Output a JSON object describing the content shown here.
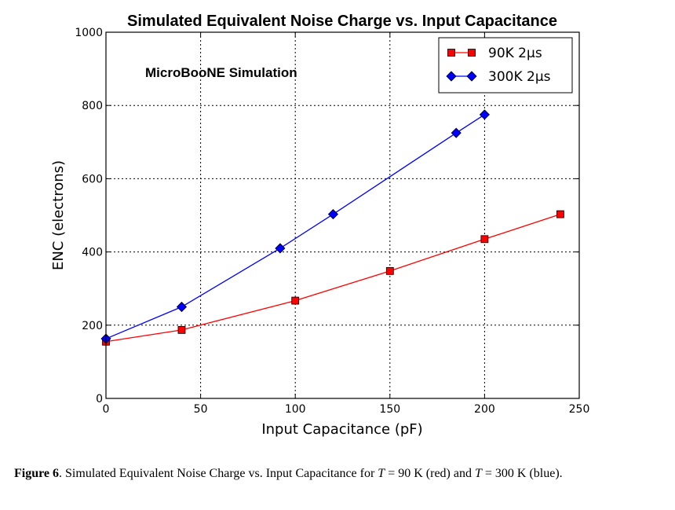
{
  "chart_data": {
    "type": "line",
    "title": "Simulated Equivalent Noise Charge vs. Input Capacitance",
    "annotation": "MicroBooNE Simulation",
    "xlabel": "Input Capacitance (pF)",
    "ylabel": "ENC (electrons)",
    "xlim": [
      0,
      250
    ],
    "ylim": [
      0,
      1000
    ],
    "xticks": [
      0,
      50,
      100,
      150,
      200,
      250
    ],
    "yticks": [
      0,
      200,
      400,
      600,
      800,
      1000
    ],
    "grid": true,
    "legend_position": "top-right",
    "series": [
      {
        "name": "90K  2μs",
        "color": "#ff0000",
        "marker": "square",
        "x": [
          0,
          40,
          100,
          150,
          200,
          240
        ],
        "y": [
          155,
          187,
          267,
          348,
          435,
          503
        ]
      },
      {
        "name": "300K  2μs",
        "color": "#0000ff",
        "marker": "diamond",
        "x": [
          0,
          40,
          92,
          120,
          185,
          200
        ],
        "y": [
          163,
          250,
          410,
          503,
          725,
          775
        ]
      }
    ]
  },
  "caption": {
    "label": "Figure 6",
    "sep": ".",
    "text1": "  Simulated Equivalent Noise Charge vs.  Input Capacitance for ",
    "T1": "T",
    "eq1": " = 90 K (red) and ",
    "T2": "T",
    "eq2": " = 300 K (blue)."
  }
}
